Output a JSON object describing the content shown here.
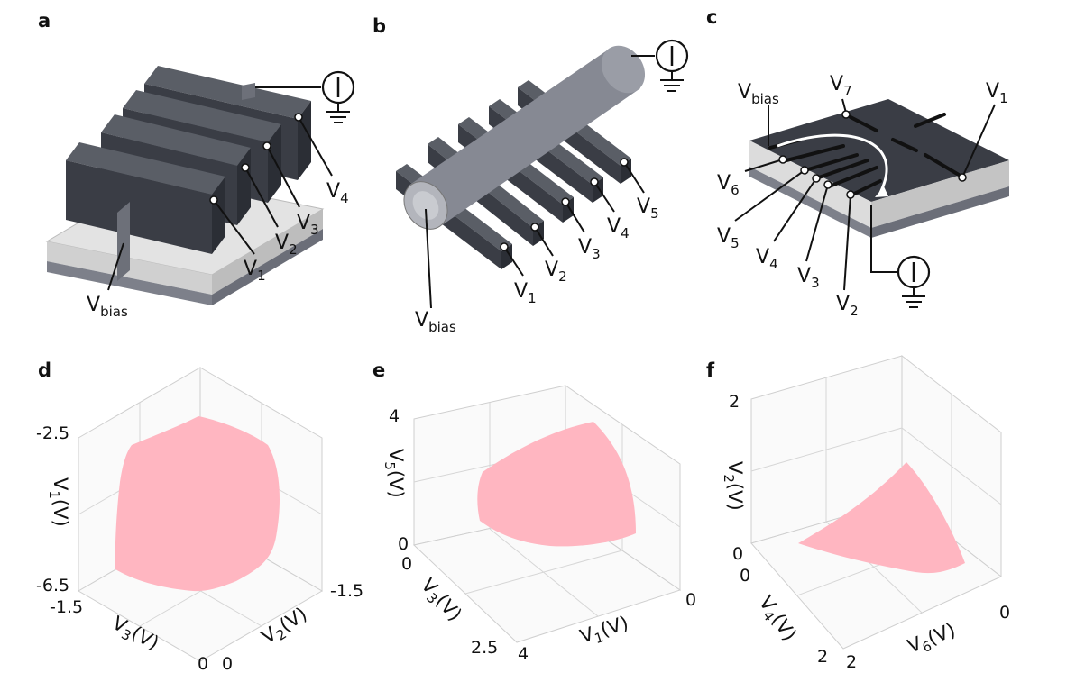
{
  "panels": {
    "a": {
      "letter": "a",
      "v_bias": "V",
      "v_bias_sub": "bias",
      "gates": [
        {
          "base": "V",
          "sub": "1"
        },
        {
          "base": "V",
          "sub": "2"
        },
        {
          "base": "V",
          "sub": "3"
        },
        {
          "base": "V",
          "sub": "4"
        }
      ]
    },
    "b": {
      "letter": "b",
      "v_bias": "V",
      "v_bias_sub": "bias",
      "gates": [
        {
          "base": "V",
          "sub": "1"
        },
        {
          "base": "V",
          "sub": "2"
        },
        {
          "base": "V",
          "sub": "3"
        },
        {
          "base": "V",
          "sub": "4"
        },
        {
          "base": "V",
          "sub": "5"
        }
      ]
    },
    "c": {
      "letter": "c",
      "v_bias": "V",
      "v_bias_sub": "bias",
      "gates": [
        {
          "base": "V",
          "sub": "1"
        },
        {
          "base": "V",
          "sub": "2"
        },
        {
          "base": "V",
          "sub": "3"
        },
        {
          "base": "V",
          "sub": "4"
        },
        {
          "base": "V",
          "sub": "5"
        },
        {
          "base": "V",
          "sub": "6"
        },
        {
          "base": "V",
          "sub": "7"
        }
      ]
    },
    "d": {
      "letter": "d",
      "z_label": "V",
      "z_sub": "1",
      "z_unit": "(V)",
      "z_ticks": [
        "-2.5",
        "-6.5"
      ],
      "x_label": "V",
      "x_sub": "3",
      "x_unit": "(V)",
      "x_ticks": [
        "-1.5",
        "0"
      ],
      "y_label": "V",
      "y_sub": "2",
      "y_unit": "(V)",
      "y_ticks": [
        "-1.5",
        "0"
      ]
    },
    "e": {
      "letter": "e",
      "z_label": "V",
      "z_sub": "5",
      "z_unit": "(V)",
      "z_ticks": [
        "4",
        "0"
      ],
      "x_label": "V",
      "x_sub": "3",
      "x_unit": "(V)",
      "x_ticks": [
        "0",
        "2.5"
      ],
      "y_label": "V",
      "y_sub": "1",
      "y_unit": "(V)",
      "y_ticks": [
        "4",
        "0"
      ]
    },
    "f": {
      "letter": "f",
      "z_label": "V",
      "z_sub": "2",
      "z_unit": "(V)",
      "z_ticks": [
        "2",
        "0"
      ],
      "x_label": "V",
      "x_sub": "4",
      "x_unit": "(V)",
      "x_ticks": [
        "0",
        "2"
      ],
      "y_label": "V",
      "y_sub": "6",
      "y_unit": "(V)",
      "y_ticks": [
        "2",
        "0"
      ]
    }
  },
  "colors": {
    "surface": "#ffb6c1",
    "gate": "#3a3d45",
    "substrate": "#d9d9d9",
    "wire": "#8a8d96"
  }
}
